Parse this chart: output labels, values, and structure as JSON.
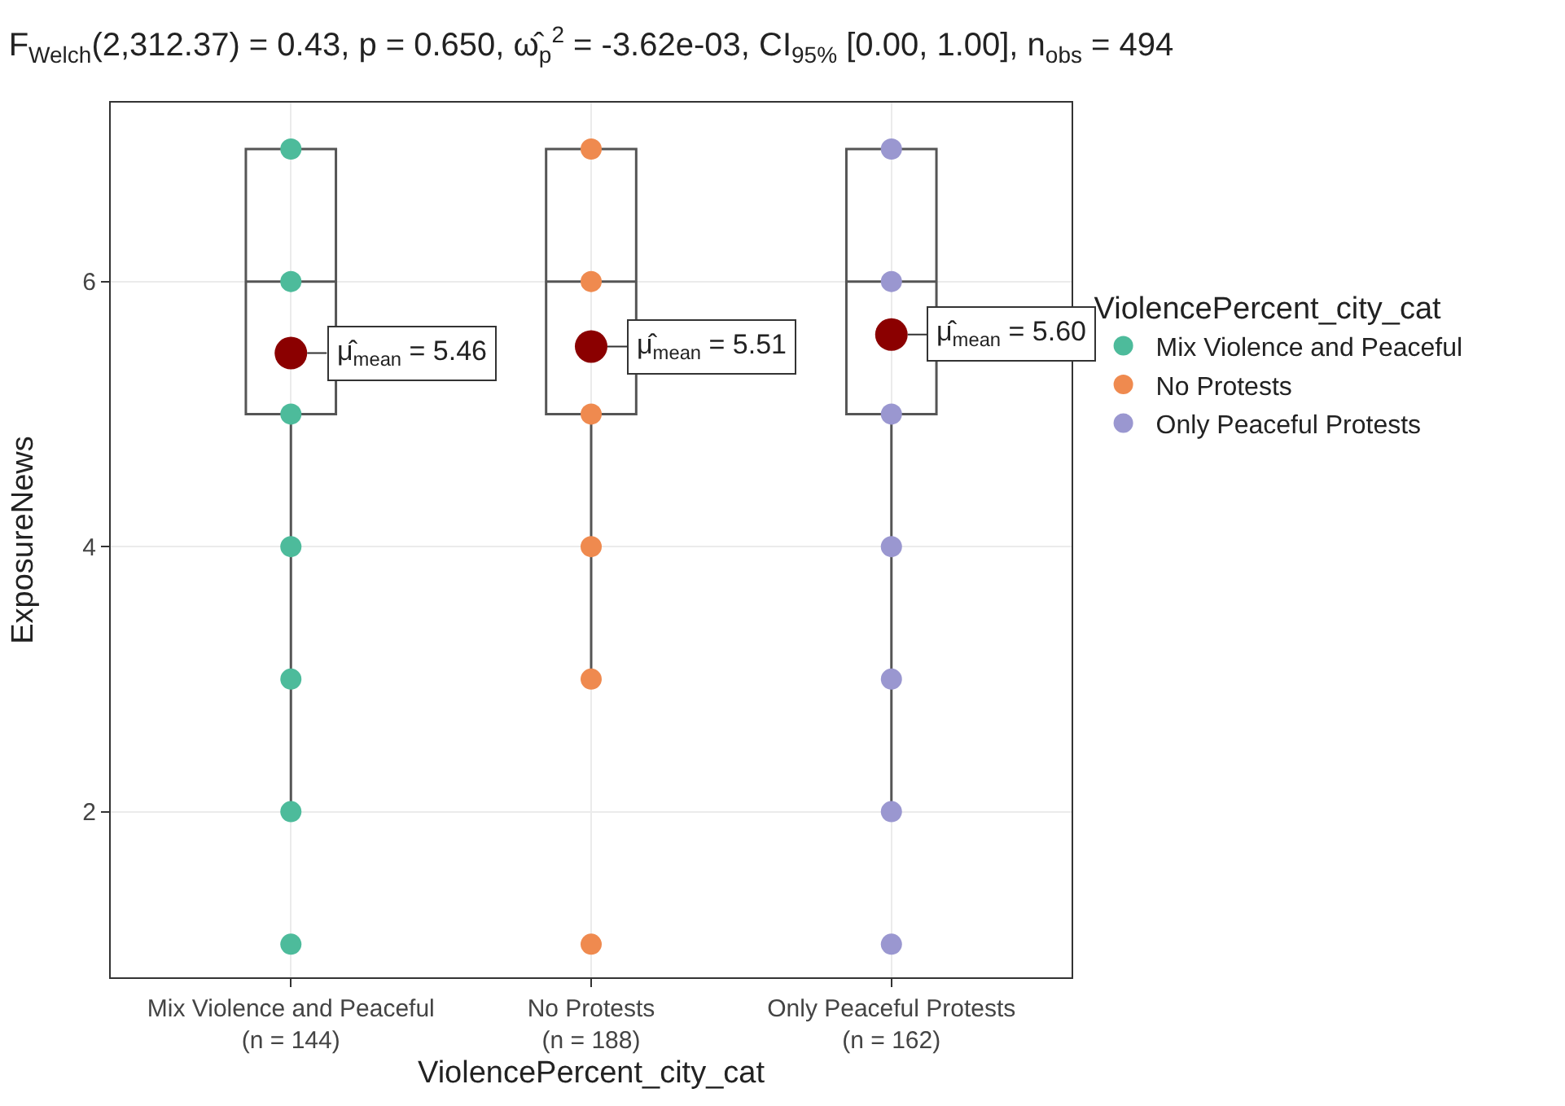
{
  "chart_data": {
    "type": "box",
    "title": "F$_{Welch}$(2,312.37) = 0.43, p = 0.650, ω̂$_{p}$$^{2}$ = -3.62e-03, CI$_{95%}$ [0.00, 1.00], n$_{obs}$ = 494",
    "xlabel": "ViolencePercent_city_cat",
    "ylabel": "ExposureNews",
    "legend_title": "ViolencePercent_city_cat",
    "categories": [
      "Mix Violence and Peaceful\n(n = 144)",
      "No Protests\n(n = 188)",
      "Only Peaceful Protests\n(n = 162)"
    ],
    "boxes": [
      {
        "low": 2,
        "q1": 5,
        "median": 6,
        "q3": 7,
        "high": 7
      },
      {
        "low": 3,
        "q1": 5,
        "median": 6,
        "q3": 7,
        "high": 7
      },
      {
        "low": 2,
        "q1": 5,
        "median": 6,
        "q3": 7,
        "high": 7
      }
    ],
    "series": [
      {
        "type": "scatter",
        "name": "Mix Violence and Peaceful",
        "color": "#4dbb9b",
        "x": [
          "Mix Violence and Peaceful\n(n = 144)",
          "Mix Violence and Peaceful\n(n = 144)",
          "Mix Violence and Peaceful\n(n = 144)",
          "Mix Violence and Peaceful\n(n = 144)",
          "Mix Violence and Peaceful\n(n = 144)",
          "Mix Violence and Peaceful\n(n = 144)",
          "Mix Violence and Peaceful\n(n = 144)"
        ],
        "values": [
          1,
          2,
          3,
          4,
          5,
          6,
          7
        ]
      },
      {
        "type": "scatter",
        "name": "No Protests",
        "color": "#ef8a4f",
        "x": [
          "No Protests\n(n = 188)",
          "No Protests\n(n = 188)",
          "No Protests\n(n = 188)",
          "No Protests\n(n = 188)",
          "No Protests\n(n = 188)",
          "No Protests\n(n = 188)"
        ],
        "values": [
          1,
          3,
          4,
          5,
          6,
          7
        ]
      },
      {
        "type": "scatter",
        "name": "Only Peaceful Protests",
        "color": "#9a97d0",
        "x": [
          "Only Peaceful Protests\n(n = 162)",
          "Only Peaceful Protests\n(n = 162)",
          "Only Peaceful Protests\n(n = 162)",
          "Only Peaceful Protests\n(n = 162)",
          "Only Peaceful Protests\n(n = 162)",
          "Only Peaceful Protests\n(n = 162)",
          "Only Peaceful Protests\n(n = 162)"
        ],
        "values": [
          1,
          2,
          3,
          4,
          5,
          6,
          7
        ]
      },
      {
        "type": "scatter",
        "color": "#8b0000",
        "x": [
          "Mix Violence and Peaceful\n(n = 144)",
          "No Protests\n(n = 188)",
          "Only Peaceful Protests\n(n = 162)"
        ],
        "values": [
          5.46,
          5.51,
          5.6
        ]
      }
    ],
    "annotations": [
      {
        "text": "μ̂$_{mean}$ = 5.46",
        "x": "Mix Violence and Peaceful\n(n = 144)",
        "y": 5.46
      },
      {
        "text": "μ̂$_{mean}$ = 5.51",
        "x": "No Protests\n(n = 188)",
        "y": 5.51
      },
      {
        "text": "μ̂$_{mean}$ = 5.60",
        "x": "Only Peaceful Protests\n(n = 162)",
        "y": 5.6
      }
    ],
    "ylim": [
      0.75,
      7.35
    ],
    "yticks": [
      2,
      4,
      6
    ],
    "grid": true,
    "legend": "right",
    "marker": "circle"
  }
}
